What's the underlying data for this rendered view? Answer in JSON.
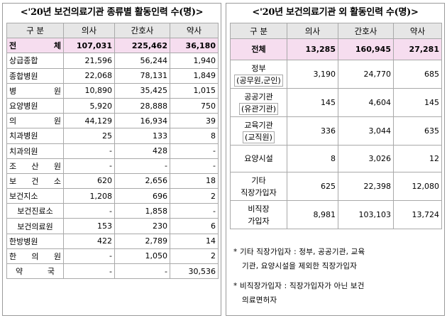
{
  "left": {
    "title": "<'20년 보건의료기관 종류별 활동인력 수(명)>",
    "headers": [
      "구 분",
      "의사",
      "간호사",
      "약사"
    ],
    "rows": [
      {
        "label": "전 체",
        "v": [
          "107,031",
          "225,462",
          "36,180"
        ],
        "total": true
      },
      {
        "label": "상급종합",
        "v": [
          "21,596",
          "56,244",
          "1,940"
        ]
      },
      {
        "label": "종합병원",
        "v": [
          "22,068",
          "78,131",
          "1,849"
        ]
      },
      {
        "label": "병 원",
        "v": [
          "10,890",
          "35,425",
          "1,015"
        ]
      },
      {
        "label": "요양병원",
        "v": [
          "5,920",
          "28,888",
          "750"
        ]
      },
      {
        "label": "의 원",
        "v": [
          "44,129",
          "16,934",
          "39"
        ]
      },
      {
        "label": "치과병원",
        "v": [
          "25",
          "133",
          "8"
        ]
      },
      {
        "label": "치과의원",
        "v": [
          "-",
          "428",
          "-"
        ]
      },
      {
        "label": "조 산 원",
        "v": [
          "-",
          "-",
          "-"
        ]
      },
      {
        "label": "보 건 소",
        "v": [
          "620",
          "2,656",
          "18"
        ]
      },
      {
        "label": "보건지소",
        "v": [
          "1,208",
          "696",
          "2"
        ]
      },
      {
        "label": "보건진료소",
        "v": [
          "-",
          "1,858",
          "-"
        ]
      },
      {
        "label": "보건의료원",
        "v": [
          "153",
          "230",
          "6"
        ]
      },
      {
        "label": "한방병원",
        "v": [
          "422",
          "2,789",
          "14"
        ]
      },
      {
        "label": "한 의 원",
        "v": [
          "-",
          "1,050",
          "2"
        ]
      },
      {
        "label": "약 국",
        "v": [
          "-",
          "-",
          "30,536"
        ]
      }
    ]
  },
  "right": {
    "title": "<'20년 보건의료기관 외 활동인력 수(명)>",
    "headers": [
      "구 분",
      "의사",
      "간호사",
      "약사"
    ],
    "rows": [
      {
        "label1": "전체",
        "label2": "",
        "v": [
          "13,285",
          "160,945",
          "27,281"
        ],
        "total": true
      },
      {
        "label1": "정부",
        "label2": "(공무원,군인)",
        "v": [
          "3,190",
          "24,770",
          "685"
        ]
      },
      {
        "label1": "공공기관",
        "label2": "(유관기관)",
        "v": [
          "145",
          "4,604",
          "145"
        ]
      },
      {
        "label1": "교육기관",
        "label2": "(교직원)",
        "v": [
          "336",
          "3,044",
          "635"
        ]
      },
      {
        "label1": "요양시설",
        "label2": "",
        "v": [
          "8",
          "3,026",
          "12"
        ]
      },
      {
        "label1": "기타",
        "label2": "직장가입자",
        "v": [
          "625",
          "22,398",
          "12,080"
        ]
      },
      {
        "label1": "비직장",
        "label2": "가입자",
        "v": [
          "8,981",
          "103,103",
          "13,724"
        ]
      }
    ],
    "notes": [
      {
        "l1": "* 기타 직장가입자 : 정부, 공공기관, 교육",
        "l2": "기관, 요양시설을 제외한 직장가입자"
      },
      {
        "l1": "* 비직장가입자 : 직장가입자가 아닌 보건",
        "l2": "의료면허자"
      }
    ]
  }
}
